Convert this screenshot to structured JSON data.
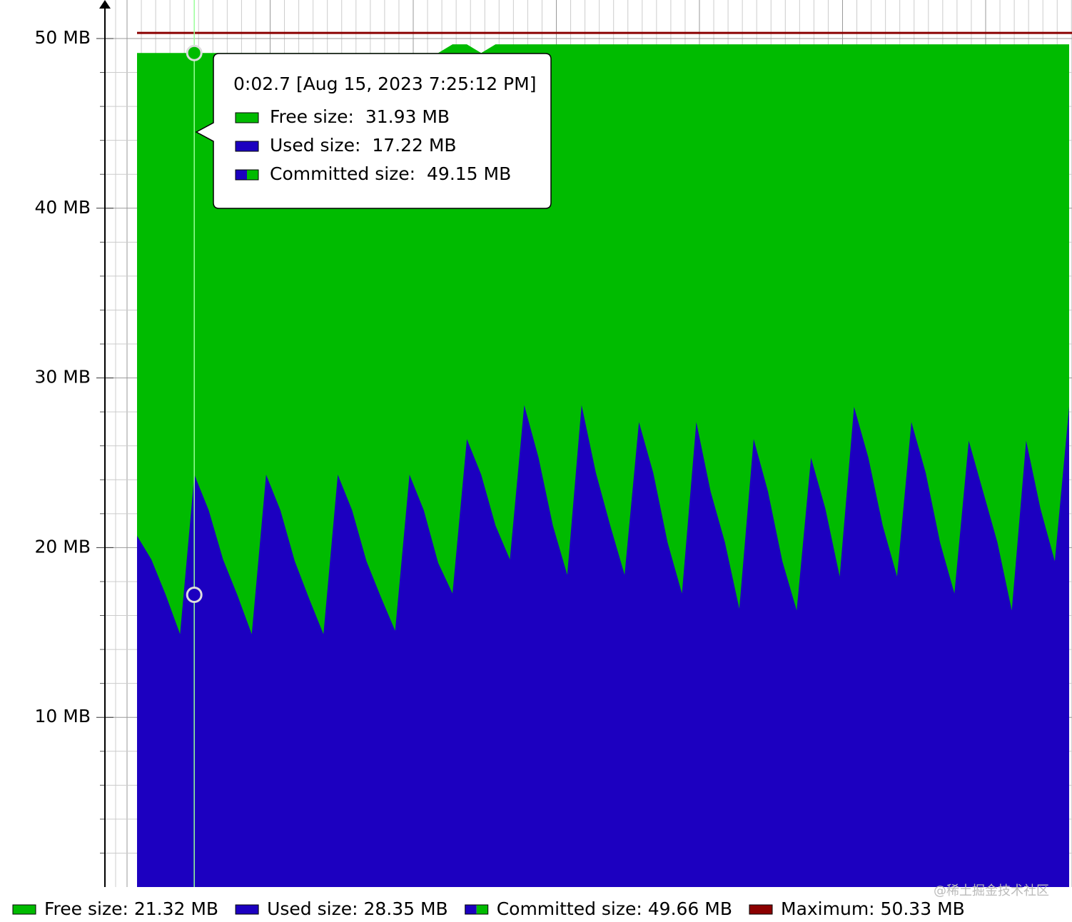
{
  "chart_data": {
    "type": "area",
    "ylim": [
      0,
      52.27
    ],
    "yticks": [
      {
        "value": 10,
        "label": "10 MB"
      },
      {
        "value": 20,
        "label": "20 MB"
      },
      {
        "value": 30,
        "label": "30 MB"
      },
      {
        "value": 40,
        "label": "40 MB"
      },
      {
        "value": 50,
        "label": "50 MB"
      }
    ],
    "minor_yticks": [
      2,
      4,
      6,
      8,
      12,
      14,
      16,
      18,
      22,
      24,
      26,
      28,
      32,
      34,
      36,
      38,
      42,
      44,
      46,
      48
    ],
    "grid": true,
    "series": [
      {
        "name": "Committed size",
        "color": "#00bb00",
        "values": [
          49.15,
          49.15,
          49.15,
          49.15,
          49.15,
          49.15,
          49.15,
          49.15,
          49.15,
          49.15,
          49.15,
          49.15,
          49.15,
          49.15,
          49.15,
          49.15,
          49.15,
          49.15,
          49.15,
          49.15,
          49.15,
          49.15,
          49.66,
          49.66,
          49.15,
          49.66,
          49.66,
          49.66,
          49.66,
          49.66,
          49.66,
          49.66,
          49.66,
          49.66,
          49.66,
          49.66,
          49.66,
          49.66,
          49.66,
          49.66,
          49.66,
          49.66,
          49.66,
          49.66,
          49.66,
          49.66,
          49.66,
          49.66,
          49.66,
          49.66,
          49.66,
          49.66,
          49.66,
          49.66,
          49.66,
          49.66,
          49.66,
          49.66,
          49.66,
          49.66,
          49.66,
          49.66,
          49.66,
          49.66,
          49.66,
          49.66
        ]
      },
      {
        "name": "Used size",
        "color": "#1c00c0",
        "values": [
          20.7,
          19.3,
          17.22,
          14.9,
          24.3,
          22.2,
          19.3,
          17.2,
          14.9,
          24.3,
          22.2,
          19.2,
          17.0,
          14.9,
          24.3,
          22.2,
          19.2,
          17.1,
          15.1,
          24.3,
          22.2,
          19.1,
          17.3,
          26.4,
          24.3,
          21.3,
          19.3,
          28.4,
          25.3,
          21.3,
          18.4,
          28.4,
          24.4,
          21.3,
          18.4,
          27.4,
          24.4,
          20.3,
          17.3,
          27.4,
          23.3,
          20.3,
          16.4,
          26.4,
          23.3,
          19.2,
          16.3,
          25.3,
          22.3,
          18.3,
          28.3,
          25.3,
          21.3,
          18.3,
          27.4,
          24.4,
          20.3,
          17.3,
          26.3,
          23.3,
          20.3,
          16.3,
          26.3,
          22.3,
          19.2,
          28.3
        ]
      }
    ],
    "maximum": {
      "value": 50.33,
      "color": "#8b0000"
    },
    "legend": [
      {
        "label": "Free size: 21.32 MB",
        "colors": [
          "#00bb00"
        ]
      },
      {
        "label": "Used size: 28.35 MB",
        "colors": [
          "#1c00c0"
        ]
      },
      {
        "label": "Committed size: 49.66 MB",
        "colors": [
          "#1c00c0",
          "#00bb00"
        ]
      },
      {
        "label": "Maximum: 50.33 MB",
        "colors": [
          "#8b0000"
        ]
      }
    ],
    "tooltip": {
      "title": "0:02.7 [Aug 15, 2023 7:25:12 PM]",
      "rows": [
        {
          "label": "Free size:",
          "value": "31.93 MB",
          "colors": [
            "#00bb00"
          ]
        },
        {
          "label": "Used size:",
          "value": "17.22 MB",
          "colors": [
            "#1c00c0"
          ]
        },
        {
          "label": "Committed size:",
          "value": "49.15 MB",
          "colors": [
            "#1c00c0",
            "#00bb00"
          ]
        }
      ]
    },
    "watermark": "@稀土掘金技术社区"
  }
}
